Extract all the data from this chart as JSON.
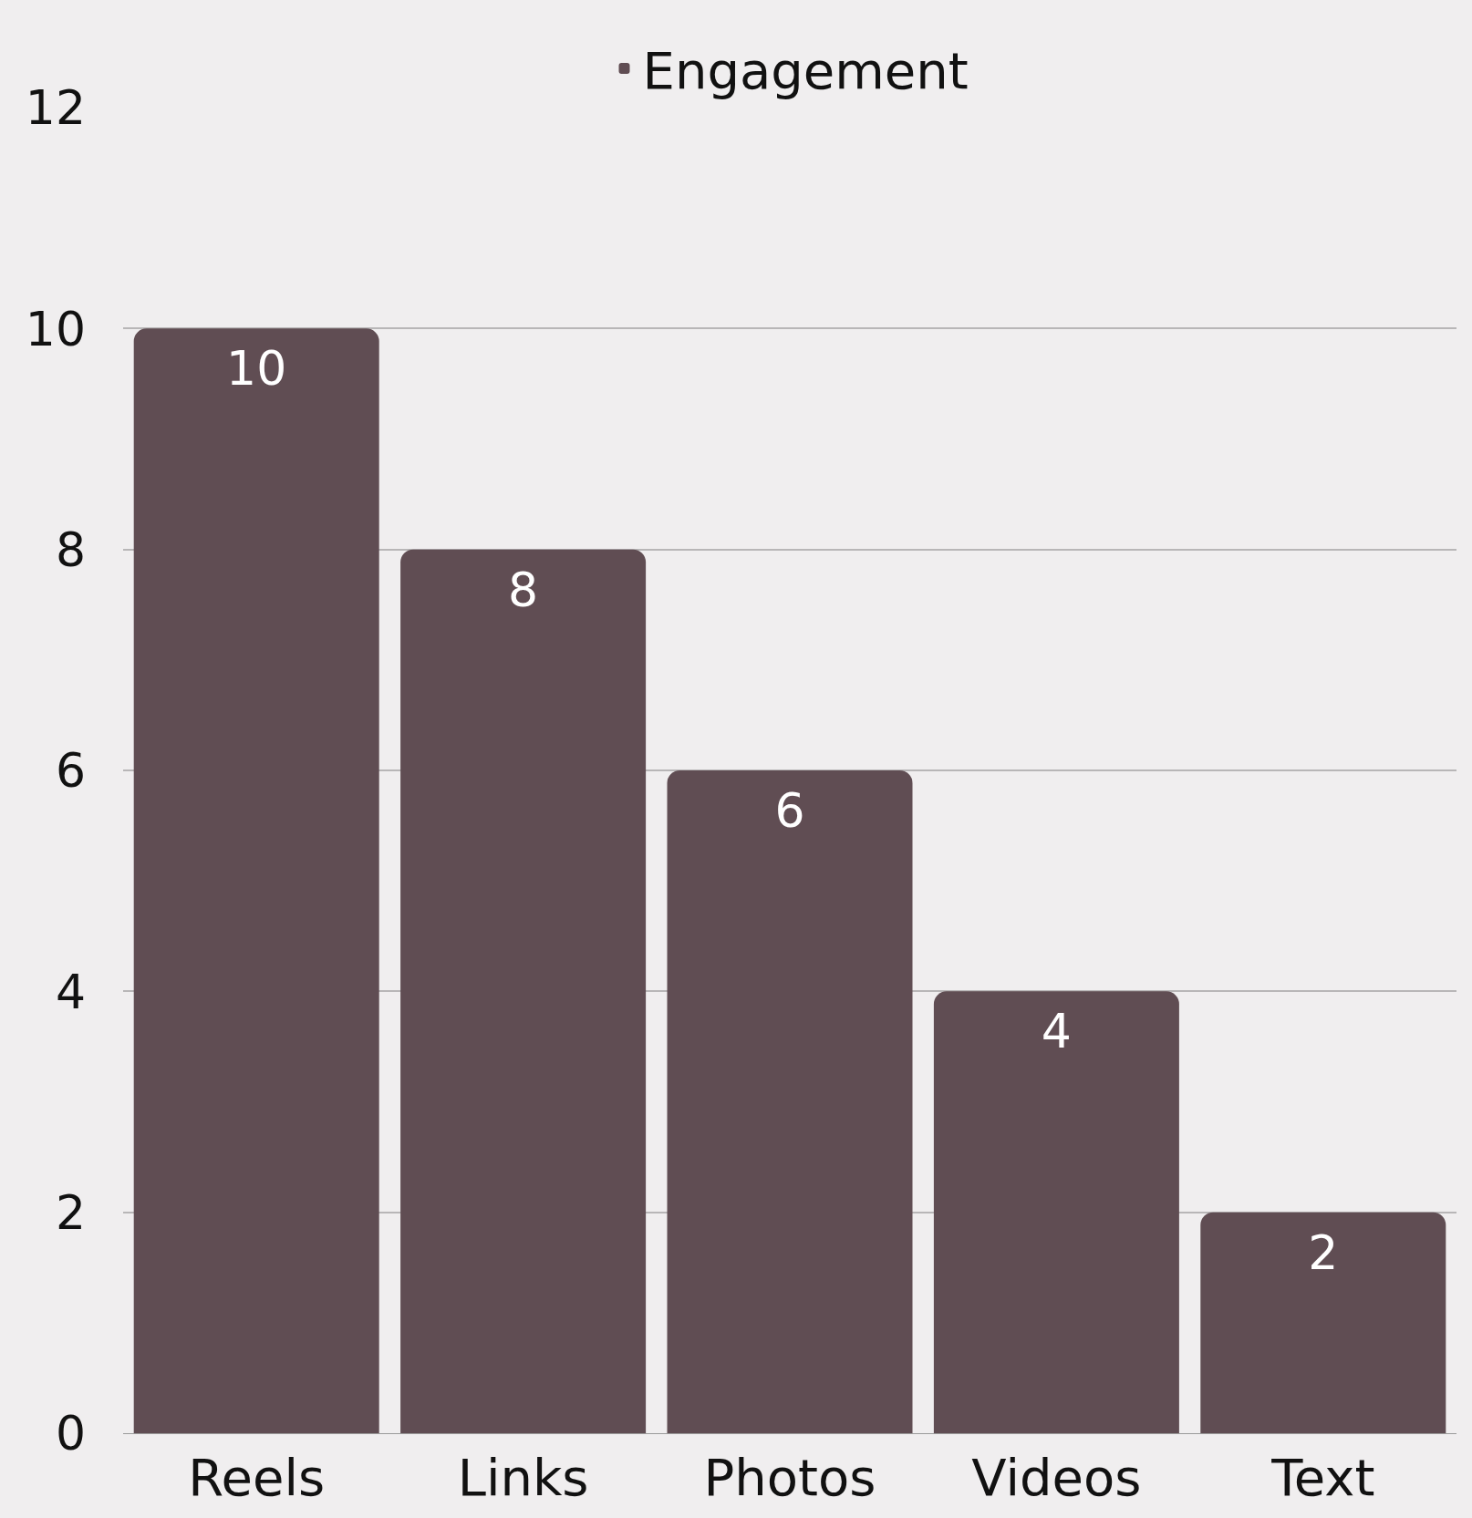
{
  "chart_data": {
    "type": "bar",
    "categories": [
      "Reels",
      "Links",
      "Photos",
      "Videos",
      "Text"
    ],
    "series": [
      {
        "name": "Engagement",
        "color": "#604d53",
        "values": [
          10,
          8,
          6,
          4,
          2
        ]
      }
    ],
    "ylim": [
      0,
      12
    ],
    "yticks": [
      0,
      2,
      4,
      6,
      8,
      10,
      12
    ],
    "grid": "y",
    "legend": "top",
    "data_labels": true
  }
}
